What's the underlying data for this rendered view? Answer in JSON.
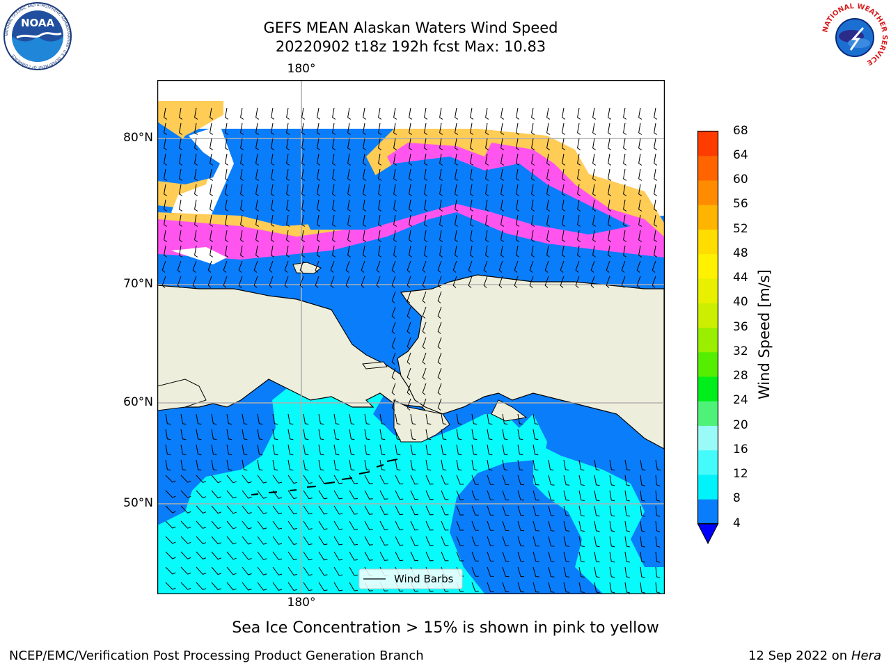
{
  "header": {
    "title": "GEFS MEAN Alaskan Waters Wind Speed",
    "subtitle": "20220902 t18z 192h fcst   Max: 10.83"
  },
  "logos": {
    "noaa": {
      "text": "NOAA",
      "ring_text": "NATIONAL OCEANIC AND ATMOSPHERIC ADMINISTRATION · U.S. DEPARTMENT OF COMMERCE"
    },
    "nws": {
      "ring_text": "NATIONAL WEATHER SERVICE"
    }
  },
  "map": {
    "lon_label_top": "180°",
    "lon_label_bottom": "180°",
    "lat_labels": [
      "80°N",
      "70°N",
      "60°N",
      "50°N"
    ],
    "legend_label": "Wind Barbs",
    "colors": {
      "land": "#eeeedc",
      "ocean_low": "#0a7dfa",
      "ocean_mid": "#08fafa",
      "ice_pink": "#ff55ee",
      "ice_yellow": "#ffcc55",
      "ice_white": "#ffffff"
    }
  },
  "colorbar": {
    "title": "Wind Speed [m/s]",
    "ticks": [
      "4",
      "8",
      "12",
      "16",
      "20",
      "24",
      "28",
      "32",
      "36",
      "40",
      "44",
      "48",
      "52",
      "56",
      "60",
      "64",
      "68"
    ],
    "colors": [
      "#0a7dfa",
      "#00f2fa",
      "#44fafa",
      "#9afaf8",
      "#4ff279",
      "#00ee1a",
      "#55ee00",
      "#9aee00",
      "#ccee00",
      "#e8f000",
      "#fff200",
      "#ffdd00",
      "#ffb400",
      "#ff8c00",
      "#ff6400",
      "#ff3c00",
      "#ff0000"
    ],
    "extend_color": "#0000ff"
  },
  "footer": {
    "note": "Sea Ice Concentration > 15% is shown in pink to yellow",
    "credit": "NCEP/EMC/Verification Post Processing Product Generation Branch",
    "date": "12 Sep 2022 on",
    "machine": "Hera"
  }
}
